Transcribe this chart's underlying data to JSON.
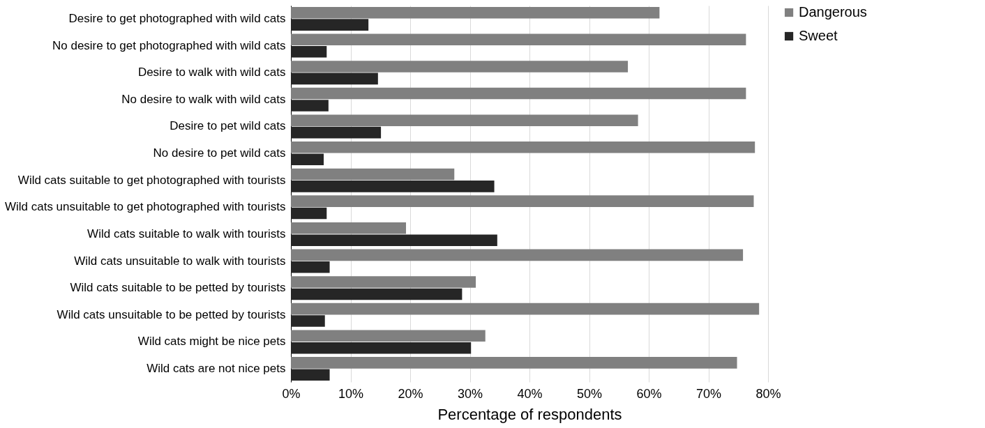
{
  "chart_data": {
    "type": "bar",
    "orientation": "horizontal",
    "xlabel": "Percentage of respondents",
    "categories": [
      "Desire to get photographed with wild cats",
      "No desire to get photographed with wild cats",
      "Desire to walk with wild cats",
      "No desire to walk with wild cats",
      "Desire to pet wild cats",
      "No desire to pet wild cats",
      "Wild cats suitable to get photographed with tourists",
      "Wild cats unsuitable to get photographed with tourists",
      "Wild cats suitable to walk with tourists",
      "Wild cats unsuitable to walk with tourists",
      "Wild cats suitable to be petted by tourists",
      "Wild cats unsuitable to be petted by tourists",
      "Wild cats might be nice pets",
      "Wild cats are not nice pets"
    ],
    "series": [
      {
        "name": "Dangerous",
        "color": "#808080",
        "values": [
          61.8,
          76.3,
          56.5,
          76.3,
          58.2,
          77.8,
          27.4,
          77.6,
          19.3,
          75.8,
          31.0,
          78.5,
          32.6,
          74.8
        ]
      },
      {
        "name": "Sweet",
        "color": "#262626",
        "values": [
          13.0,
          6.0,
          14.6,
          6.3,
          15.1,
          5.5,
          34.1,
          6.0,
          34.6,
          6.5,
          28.7,
          5.7,
          30.2,
          6.5
        ]
      }
    ],
    "xlim": [
      0,
      80
    ],
    "xticks": [
      {
        "value": 0,
        "label": "0%"
      },
      {
        "value": 10,
        "label": "10%"
      },
      {
        "value": 20,
        "label": "20%"
      },
      {
        "value": 30,
        "label": "30%"
      },
      {
        "value": 40,
        "label": "40%"
      },
      {
        "value": 50,
        "label": "50%"
      },
      {
        "value": 60,
        "label": "60%"
      },
      {
        "value": 70,
        "label": "70%"
      },
      {
        "value": 80,
        "label": "80%"
      }
    ],
    "grid": "x",
    "legend": "right"
  }
}
